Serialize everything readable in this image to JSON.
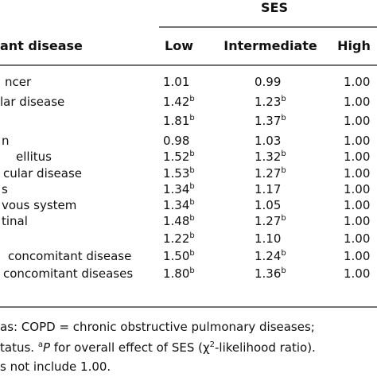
{
  "header": {
    "group": "SES",
    "columns": [
      "ant disease",
      "Low",
      "Intermediate",
      "High"
    ]
  },
  "table": {
    "rows": [
      [
        {
          "text": "ncer"
        },
        {
          "text": "1.01"
        },
        {
          "text": "0.99"
        },
        {
          "text": "1.00"
        }
      ],
      [
        {
          "text": "lar disease"
        },
        {
          "text": "1.42",
          "sup": "b"
        },
        {
          "text": "1.23",
          "sup": "b"
        },
        {
          "text": "1.00"
        }
      ],
      [
        null,
        {
          "text": "1.81",
          "sup": "b"
        },
        {
          "text": "1.37",
          "sup": "b"
        },
        {
          "text": "1.00"
        }
      ],
      [
        {
          "text": "n"
        },
        {
          "text": "0.98"
        },
        {
          "text": "1.03"
        },
        {
          "text": "1.00"
        }
      ],
      [
        {
          "text": "ellitus"
        },
        {
          "text": "1.52",
          "sup": "b"
        },
        {
          "text": "1.32",
          "sup": "b"
        },
        {
          "text": "1.00"
        }
      ],
      [
        {
          "text": "cular disease"
        },
        {
          "text": "1.53",
          "sup": "b"
        },
        {
          "text": "1.27",
          "sup": "b"
        },
        {
          "text": "1.00"
        }
      ],
      [
        {
          "text": "s"
        },
        {
          "text": "1.34",
          "sup": "b"
        },
        {
          "text": "1.17"
        },
        {
          "text": "1.00"
        }
      ],
      [
        {
          "text": "vous system"
        },
        {
          "text": "1.34",
          "sup": "b"
        },
        {
          "text": "1.05"
        },
        {
          "text": "1.00"
        }
      ],
      [
        {
          "text": "tinal"
        },
        {
          "text": "1.48",
          "sup": "b"
        },
        {
          "text": "1.27",
          "sup": "b"
        },
        {
          "text": "1.00"
        }
      ],
      [
        null,
        {
          "text": "1.22",
          "sup": "b"
        },
        {
          "text": "1.10"
        },
        {
          "text": "1.00"
        }
      ],
      [
        {
          "text": "concomitant disease"
        },
        {
          "text": "1.50",
          "sup": "b"
        },
        {
          "text": "1.24",
          "sup": "b"
        },
        {
          "text": "1.00"
        }
      ],
      [
        {
          "text": "concomitant diseases"
        },
        {
          "text": "1.80",
          "sup": "b"
        },
        {
          "text": "1.36",
          "sup": "b"
        },
        {
          "text": "1.00"
        }
      ]
    ]
  },
  "footnote": [
    [
      {
        "text": "as:  COPD = chronic obstructive pulmonary diseases;"
      }
    ],
    [
      {
        "text": "tatus. "
      },
      {
        "text": "a",
        "style": "sup"
      },
      {
        "text": "P",
        "style": "italic"
      },
      {
        "text": " for overall effect of SES (χ"
      },
      {
        "text": "2",
        "style": "sup"
      },
      {
        "text": "-likelihood ratio)."
      }
    ],
    [
      {
        "text": "s not include 1.00."
      }
    ]
  ]
}
